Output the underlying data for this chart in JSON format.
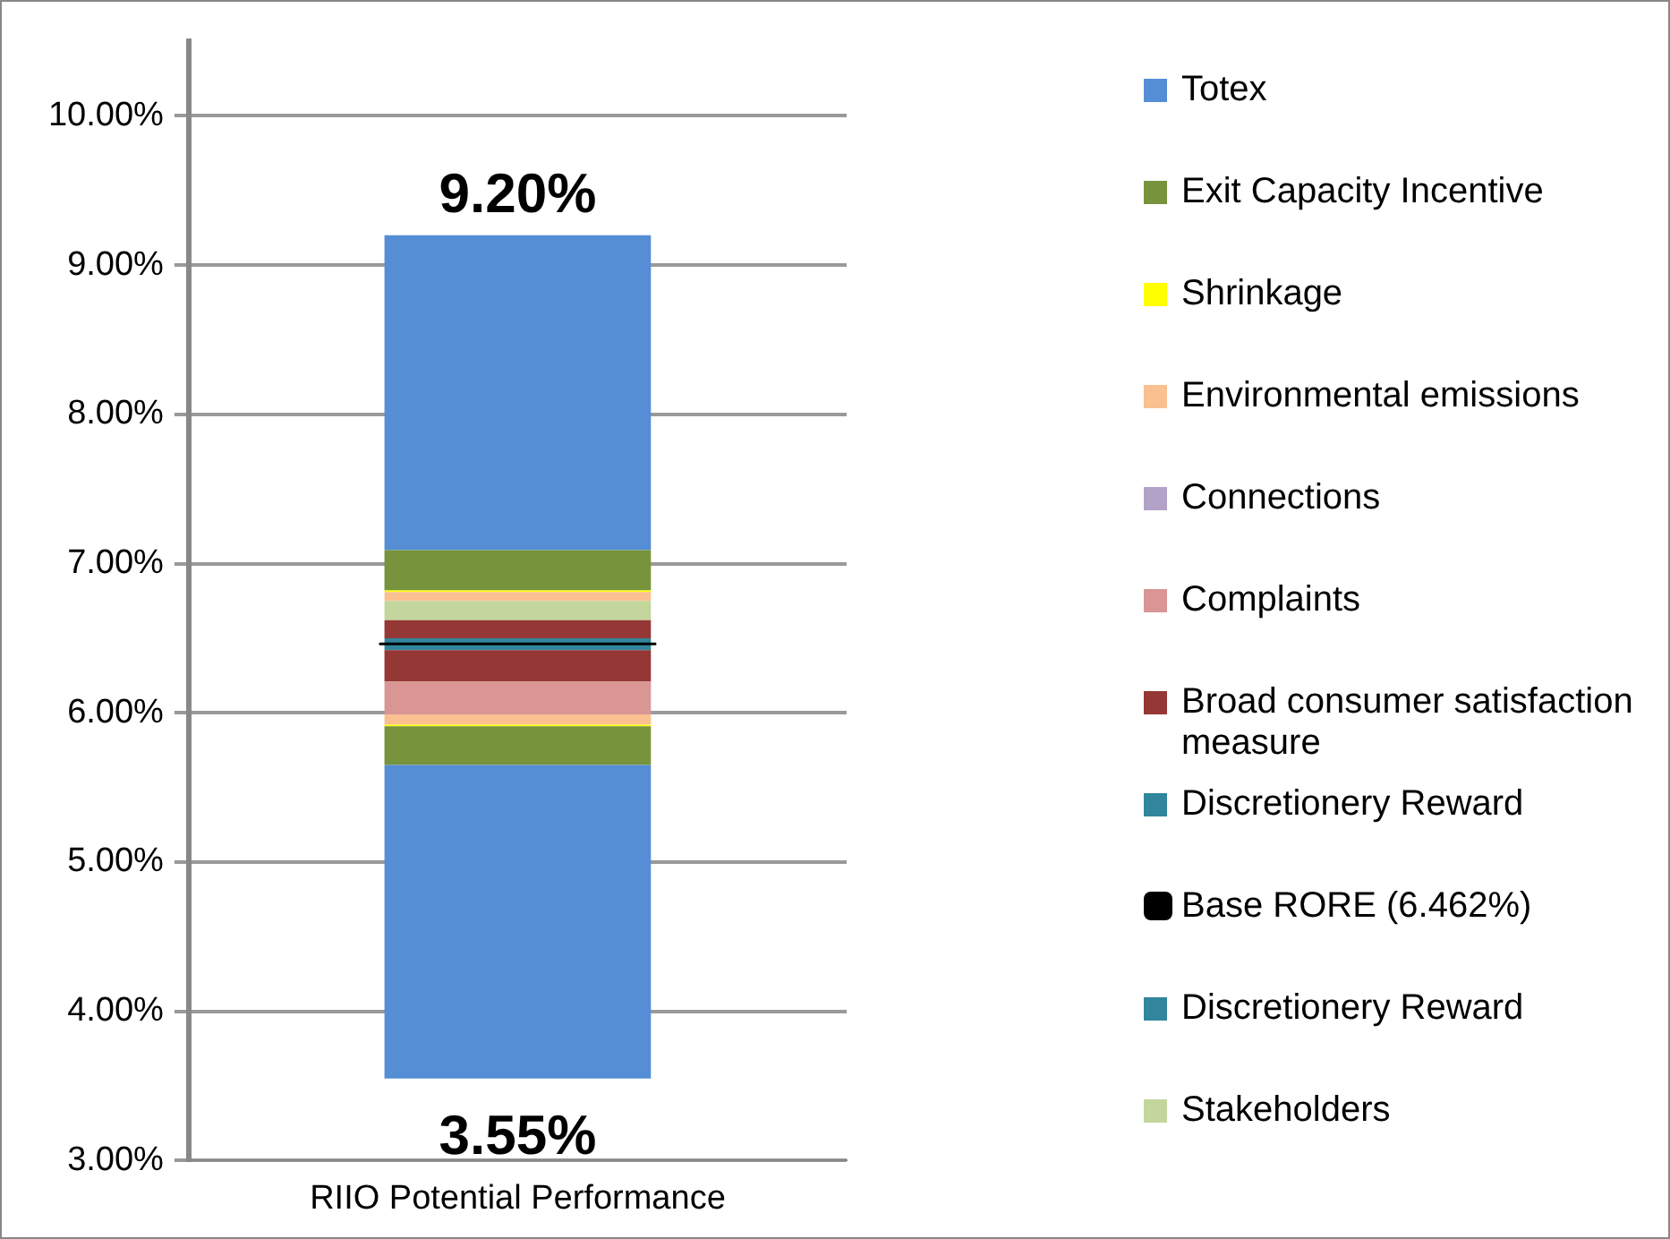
{
  "chart_data": {
    "type": "bar",
    "categories": [
      "RIIO Potential Performance"
    ],
    "series": [
      {
        "name": "Totex",
        "color": "#558ed5",
        "base": [
          3.55
        ],
        "values": [
          2.1
        ]
      },
      {
        "name": "Exit Capacity Incentive",
        "color": "#77933c",
        "base": [
          5.65
        ],
        "values": [
          0.26
        ]
      },
      {
        "name": "Shrinkage",
        "color": "#ffff00",
        "base": [
          5.91
        ],
        "values": [
          0.01
        ]
      },
      {
        "name": "Environmental emissions",
        "color": "#fac090",
        "base": [
          5.92
        ],
        "values": [
          0.07
        ]
      },
      {
        "name": "Connections",
        "color": "#b3a2c7",
        "base": [
          null
        ],
        "values": [
          null
        ]
      },
      {
        "name": "Complaints",
        "color": "#d99694",
        "base": [
          5.99
        ],
        "values": [
          0.22
        ]
      },
      {
        "name": "Broad consumer satisfaction measure",
        "color": "#953735",
        "base": [
          6.21
        ],
        "values": [
          0.21
        ]
      },
      {
        "name": "Discretionery Reward",
        "color": "#31859c",
        "base": [
          6.42
        ],
        "values": [
          0.04
        ]
      },
      {
        "name": "Discretionery Reward",
        "color": "#31859c",
        "base": [
          6.46
        ],
        "values": [
          0.04
        ]
      },
      {
        "color": "#953735",
        "base": [
          6.5
        ],
        "values": [
          0.12
        ]
      },
      {
        "name": "Stakeholders",
        "color": "#c3d69b",
        "base": [
          6.62
        ],
        "values": [
          0.13
        ]
      },
      {
        "color": "#fac090",
        "base": [
          6.75
        ],
        "values": [
          0.06
        ]
      },
      {
        "color": "#ffff00",
        "base": [
          6.81
        ],
        "values": [
          0.01
        ]
      },
      {
        "color": "#77933c",
        "base": [
          6.82
        ],
        "values": [
          0.27
        ]
      },
      {
        "color": "#558ed5",
        "base": [
          7.09
        ],
        "values": [
          2.11
        ]
      }
    ],
    "ref_lines": [
      {
        "axis": "y",
        "value": 6.462,
        "label": "Base RORE (6.462%)",
        "color": "#000000"
      }
    ],
    "annotations": [
      {
        "text": "9.20%",
        "x": "RIIO Potential Performance",
        "y": 9.2
      },
      {
        "text": "3.55%",
        "x": "RIIO Potential Performance",
        "y": 3.55
      }
    ],
    "ylim": [
      3,
      10.5
    ],
    "yticks": [
      {
        "value": 3,
        "label": "3.00%"
      },
      {
        "value": 4,
        "label": "4.00%"
      },
      {
        "value": 5,
        "label": "5.00%"
      },
      {
        "value": 6,
        "label": "6.00%"
      },
      {
        "value": 7,
        "label": "7.00%"
      },
      {
        "value": 8,
        "label": "8.00%"
      },
      {
        "value": 9,
        "label": "9.00%"
      },
      {
        "value": 10,
        "label": "10.00%"
      }
    ],
    "grid": "y",
    "legend": "right"
  }
}
